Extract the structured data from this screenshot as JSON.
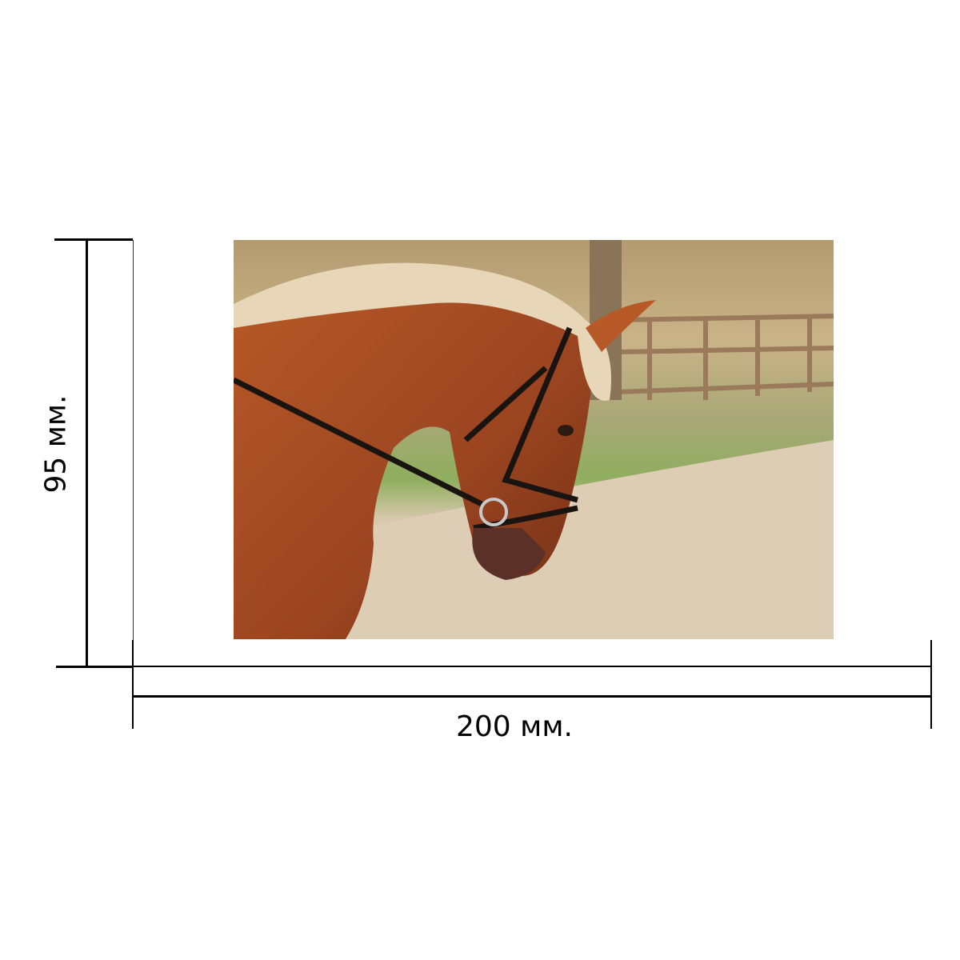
{
  "dimensions": {
    "width_label": "200 мм.",
    "height_label": "95 мм."
  },
  "photo": {
    "subject": "chestnut-horse-head-with-bridle",
    "colors": {
      "coat": "#a0481e",
      "mane": "#e8d6b8",
      "sand": "#dccdb4",
      "grass": "#8fae5e",
      "fence": "#9a7a5a"
    }
  }
}
